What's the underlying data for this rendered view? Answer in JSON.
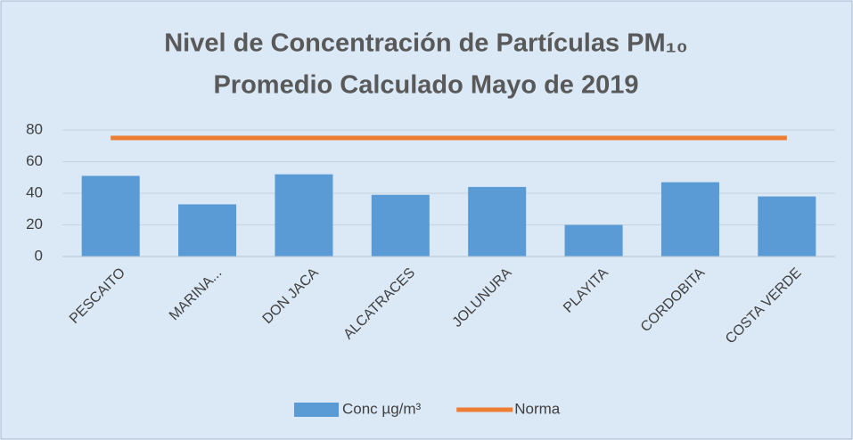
{
  "chart_data": {
    "type": "bar",
    "title": [
      "Nivel de Concentración de Partículas PM₁₀",
      "Promedio Calculado Mayo  de 2019"
    ],
    "categories": [
      "PESCAITO",
      "MARINA...",
      "DON JACA",
      "ALCATRACES",
      "JOLUNURA",
      "PLAYITA",
      "CORDOBITA",
      "COSTA VERDE"
    ],
    "series": [
      {
        "name": "Conc µg/m³",
        "color": "#5b9bd5",
        "type": "bar",
        "values": [
          51,
          33,
          52,
          39,
          44,
          20,
          47,
          38
        ]
      },
      {
        "name": "Norma",
        "color": "#ed7d31",
        "type": "line",
        "values": [
          75,
          75,
          75,
          75,
          75,
          75,
          75,
          75
        ]
      }
    ],
    "ylim": [
      0,
      80
    ],
    "yticks": [
      0,
      20,
      40,
      60,
      80
    ],
    "grid": true,
    "legend": "bottom"
  }
}
